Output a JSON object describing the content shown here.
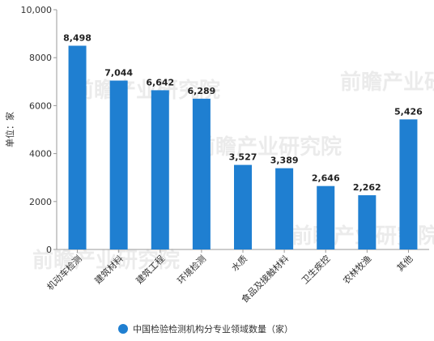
{
  "chart_data": {
    "type": "bar",
    "categories": [
      "机动车检测",
      "建筑材料",
      "建筑工程",
      "环境检测",
      "水质",
      "食品及接触材料",
      "卫生疾控",
      "农林牧渔",
      "其他"
    ],
    "series": [
      {
        "name": "中国检验检测机构分专业领域数量（家）",
        "values": [
          8498,
          7044,
          6642,
          6289,
          3527,
          3389,
          2646,
          2262,
          5426
        ],
        "value_labels": [
          "8,498",
          "7,044",
          "6,642",
          "6,289",
          "3,527",
          "3,389",
          "2,646",
          "2,262",
          "5,426"
        ]
      }
    ],
    "title": "",
    "xlabel": "",
    "ylabel": "单位：家",
    "ylim": [
      0,
      10000
    ],
    "yticks": [
      0,
      2000,
      4000,
      6000,
      8000,
      10000
    ],
    "ytick_labels": [
      "0",
      "2000",
      "4000",
      "6000",
      "8000",
      "10,000"
    ],
    "grid": false,
    "legend_position": "bottom-center",
    "bar_color": "#1f7fd1"
  },
  "watermark": {
    "text": "前瞻产业研究院",
    "icon": "qianzhan-logo-icon"
  }
}
